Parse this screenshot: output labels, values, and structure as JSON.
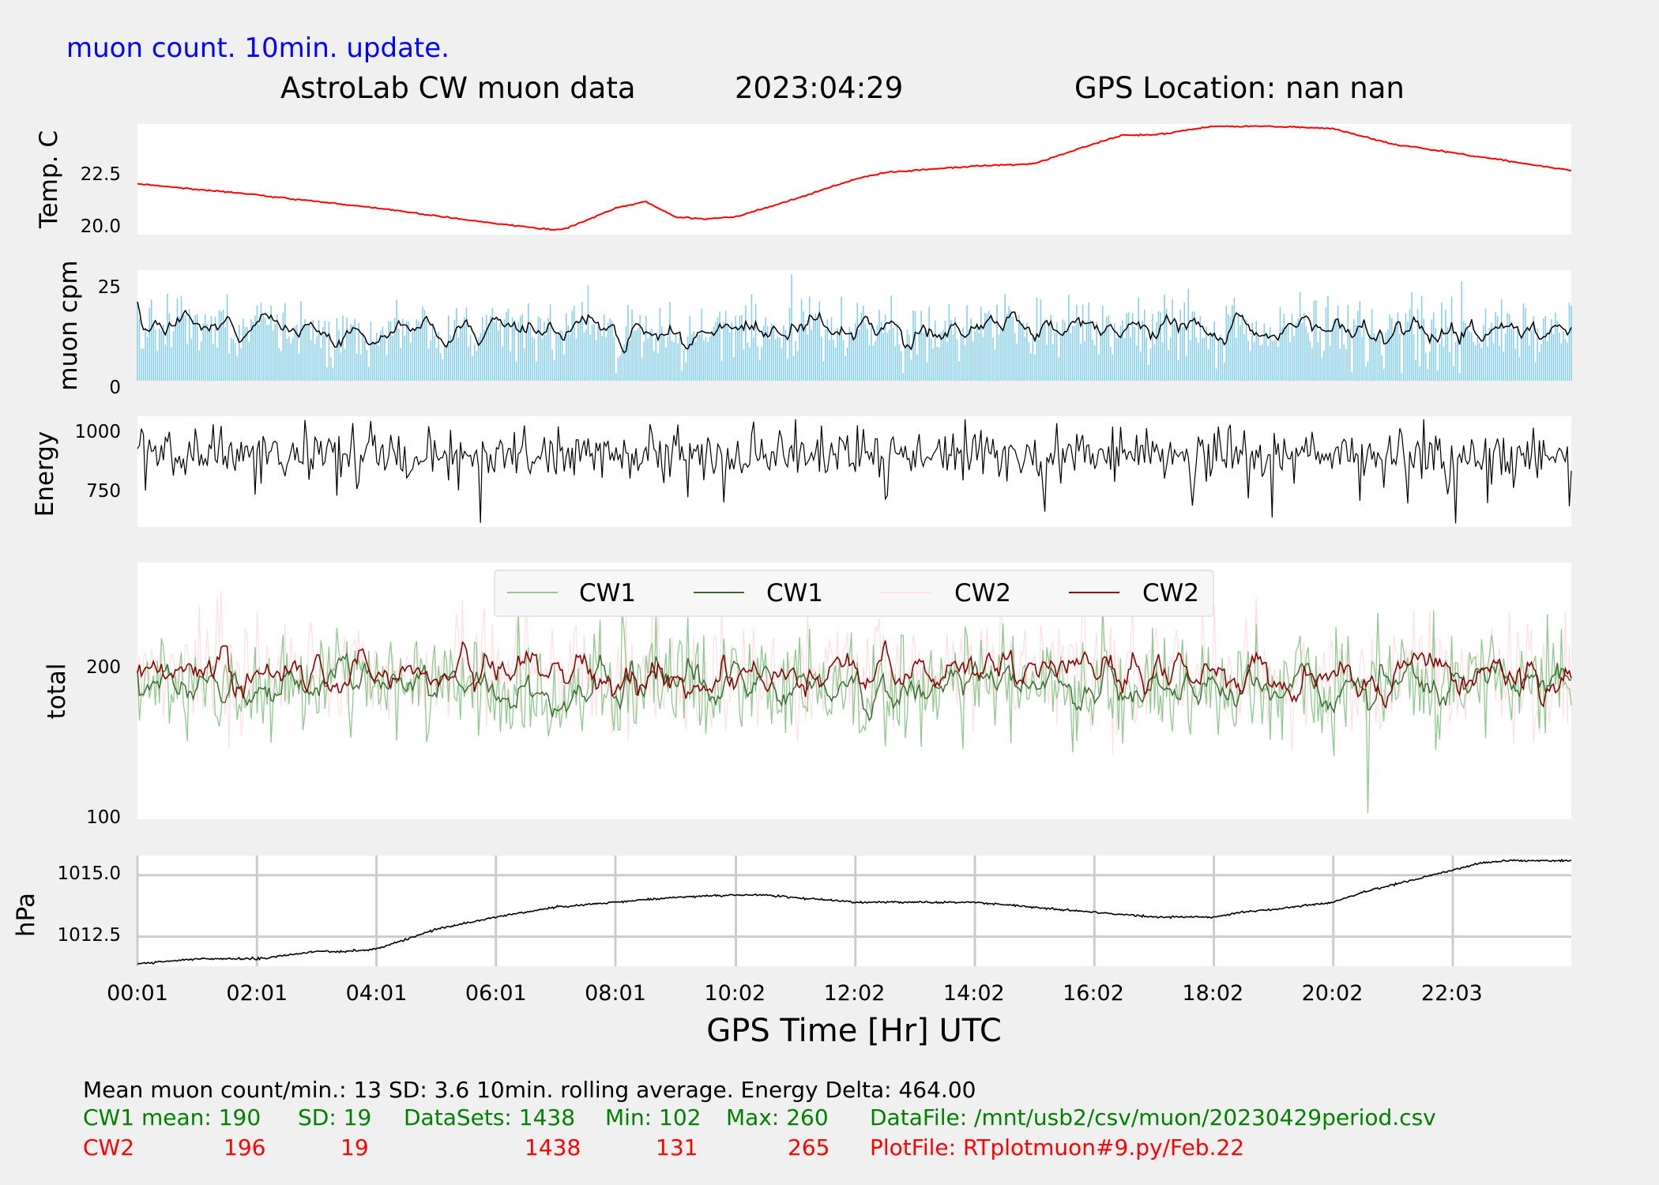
{
  "header": {
    "update_note": "muon count.  10min. update.",
    "title_left": "AstroLab CW muon data",
    "title_date": "2023:04:29",
    "title_gps": "GPS Location: nan   nan"
  },
  "x_axis": {
    "label": "GPS Time  [Hr] UTC",
    "ticks": [
      "00:01",
      "02:01",
      "04:01",
      "06:01",
      "08:01",
      "10:02",
      "12:02",
      "14:02",
      "16:02",
      "18:02",
      "20:02",
      "22:03"
    ]
  },
  "colors": {
    "temp": "#ff0000",
    "muon_bars": "#87ceeb",
    "black": "#000000",
    "cw1_raw": "#8fc98f",
    "cw1_avg": "#3d6b2e",
    "cw2_raw": "#ffc8d0",
    "cw2_avg": "#8b0000",
    "green_text": "#008000",
    "red_text": "#ff0000",
    "blue_text": "#0000ff"
  },
  "chart_data": [
    {
      "type": "line",
      "ylabel": "Temp. C",
      "yticks": [
        "22.5",
        "20.0"
      ],
      "ylim": [
        19.8,
        24.8
      ],
      "series": [
        {
          "values_x_hours": [
            0,
            2,
            4,
            6,
            7,
            7.2,
            8,
            8.5,
            9,
            9.5,
            10,
            11,
            12,
            12.5,
            13,
            14,
            15,
            16,
            16.5,
            17,
            17.5,
            18,
            19,
            20,
            21,
            22,
            23,
            24
          ],
          "values": [
            22.1,
            21.6,
            21.0,
            20.3,
            20.0,
            20.1,
            21.0,
            21.3,
            20.6,
            20.5,
            20.6,
            21.4,
            22.3,
            22.6,
            22.7,
            22.9,
            23.0,
            23.9,
            24.3,
            24.3,
            24.5,
            24.7,
            24.7,
            24.6,
            23.9,
            23.5,
            23.1,
            22.7
          ]
        }
      ]
    },
    {
      "type": "bar",
      "ylabel": "muon cpm",
      "yticks": [
        "25",
        "0"
      ],
      "ylim": [
        0,
        28
      ],
      "mean": 13,
      "sd": 3.6
    },
    {
      "type": "line",
      "ylabel": "Energy",
      "yticks": [
        "1000",
        "750"
      ],
      "ylim": [
        610,
        1080
      ]
    },
    {
      "type": "line",
      "ylabel": "total",
      "yticks": [
        "200",
        "100"
      ],
      "ylim": [
        98,
        272
      ],
      "legend": [
        "CW1",
        "CW1",
        "CW2",
        "CW2"
      ],
      "legend_placement": "top-center",
      "series": [
        {
          "name": "CW1",
          "mean": 190,
          "sd": 19,
          "min": 102,
          "max": 260
        },
        {
          "name": "CW2",
          "mean": 196,
          "sd": 19,
          "min": 131,
          "max": 265
        }
      ]
    },
    {
      "type": "line",
      "ylabel": "hPa",
      "yticks": [
        "1015.0",
        "1012.5"
      ],
      "ylim": [
        1011.3,
        1015.8
      ],
      "grid": true,
      "series": [
        {
          "values_x_hours": [
            0,
            1,
            2,
            3,
            3.5,
            4,
            5,
            6,
            7,
            8,
            9,
            10,
            10.5,
            11,
            12,
            13,
            14,
            15,
            16,
            17,
            18,
            18.5,
            19,
            20,
            20.5,
            21,
            22,
            22.5,
            23,
            24
          ],
          "values": [
            1011.4,
            1011.6,
            1011.6,
            1011.9,
            1011.9,
            1012.0,
            1012.8,
            1013.3,
            1013.7,
            1013.9,
            1014.1,
            1014.2,
            1014.2,
            1014.1,
            1013.9,
            1013.9,
            1013.9,
            1013.7,
            1013.5,
            1013.3,
            1013.3,
            1013.5,
            1013.6,
            1013.9,
            1014.3,
            1014.6,
            1015.2,
            1015.5,
            1015.6,
            1015.6
          ]
        }
      ]
    }
  ],
  "footer": {
    "line1": "Mean muon count/min.: 13  SD: 3.6   10min. rolling average.    Energy Delta:  464.00",
    "cw1": {
      "label": "CW1 mean: 190",
      "sd": "SD: 19",
      "datasets": "DataSets: 1438",
      "min": "Min: 102",
      "max": "Max: 260",
      "file": "DataFile: /mnt/usb2/csv/muon/20230429period.csv"
    },
    "cw2": {
      "label": "CW2",
      "mean": "196",
      "sd": "19",
      "datasets": "1438",
      "min": "131",
      "max": "265",
      "file": "PlotFile: RTplotmuon#9.py/Feb.22"
    }
  }
}
